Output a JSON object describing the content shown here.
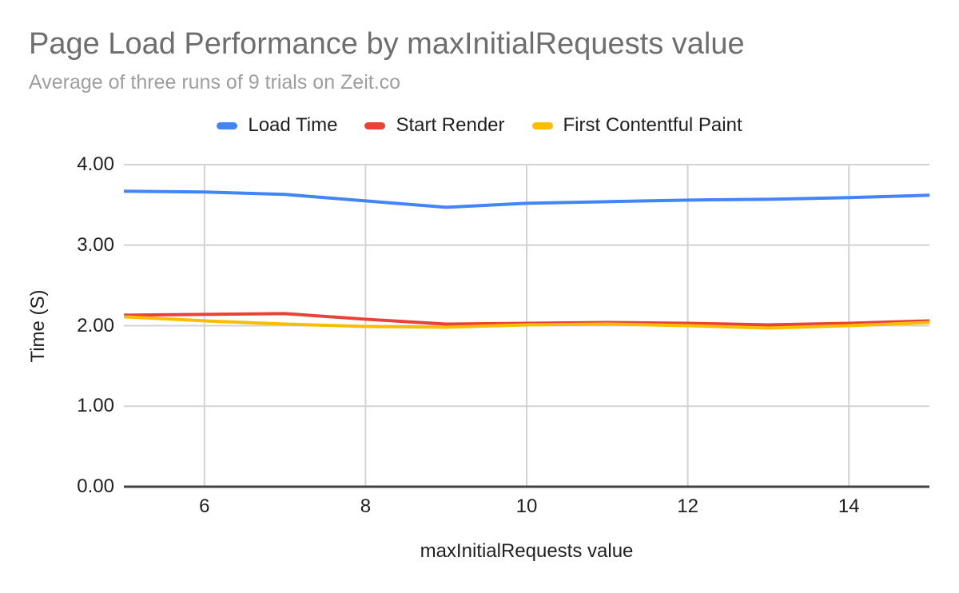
{
  "chart": {
    "colors": {
      "title_gray": "#6e6e6e",
      "subtitle_gray": "#9e9e9e",
      "text_black": "#1f1f1f",
      "gridline_gray": "#d3d3d3",
      "axis_baseline": "#424242",
      "background": "#ffffff"
    }
  },
  "chart_data": {
    "type": "line",
    "title": "Page Load Performance by maxInitialRequests value",
    "subtitle": "Average of three runs of 9 trials on Zeit.co",
    "xlabel": "maxInitialRequests value",
    "ylabel": "Time (S)",
    "x": [
      5,
      6,
      7,
      8,
      9,
      10,
      11,
      12,
      13,
      14,
      15
    ],
    "series": [
      {
        "name": "Load Time",
        "color": "#4285f4",
        "values": [
          3.67,
          3.66,
          3.63,
          3.55,
          3.47,
          3.52,
          3.54,
          3.56,
          3.57,
          3.59,
          3.62
        ]
      },
      {
        "name": "Start Render",
        "color": "#ea4335",
        "values": [
          2.13,
          2.14,
          2.15,
          2.08,
          2.02,
          2.03,
          2.04,
          2.03,
          2.01,
          2.03,
          2.06
        ]
      },
      {
        "name": "First Contentful Paint",
        "color": "#fbbc04",
        "values": [
          2.11,
          2.06,
          2.02,
          1.99,
          1.98,
          2.01,
          2.02,
          2.0,
          1.97,
          2.0,
          2.04
        ]
      }
    ],
    "xlim": [
      5,
      15
    ],
    "ylim": [
      0,
      4
    ],
    "x_ticks": [
      6,
      8,
      10,
      12,
      14
    ],
    "x_tick_labels": [
      "6",
      "8",
      "10",
      "12",
      "14"
    ],
    "y_ticks": [
      0,
      1,
      2,
      3,
      4
    ],
    "y_tick_labels": [
      "0.00",
      "1.00",
      "2.00",
      "3.00",
      "4.00"
    ],
    "grid": true,
    "legend_position": "top",
    "line_width": 4
  }
}
